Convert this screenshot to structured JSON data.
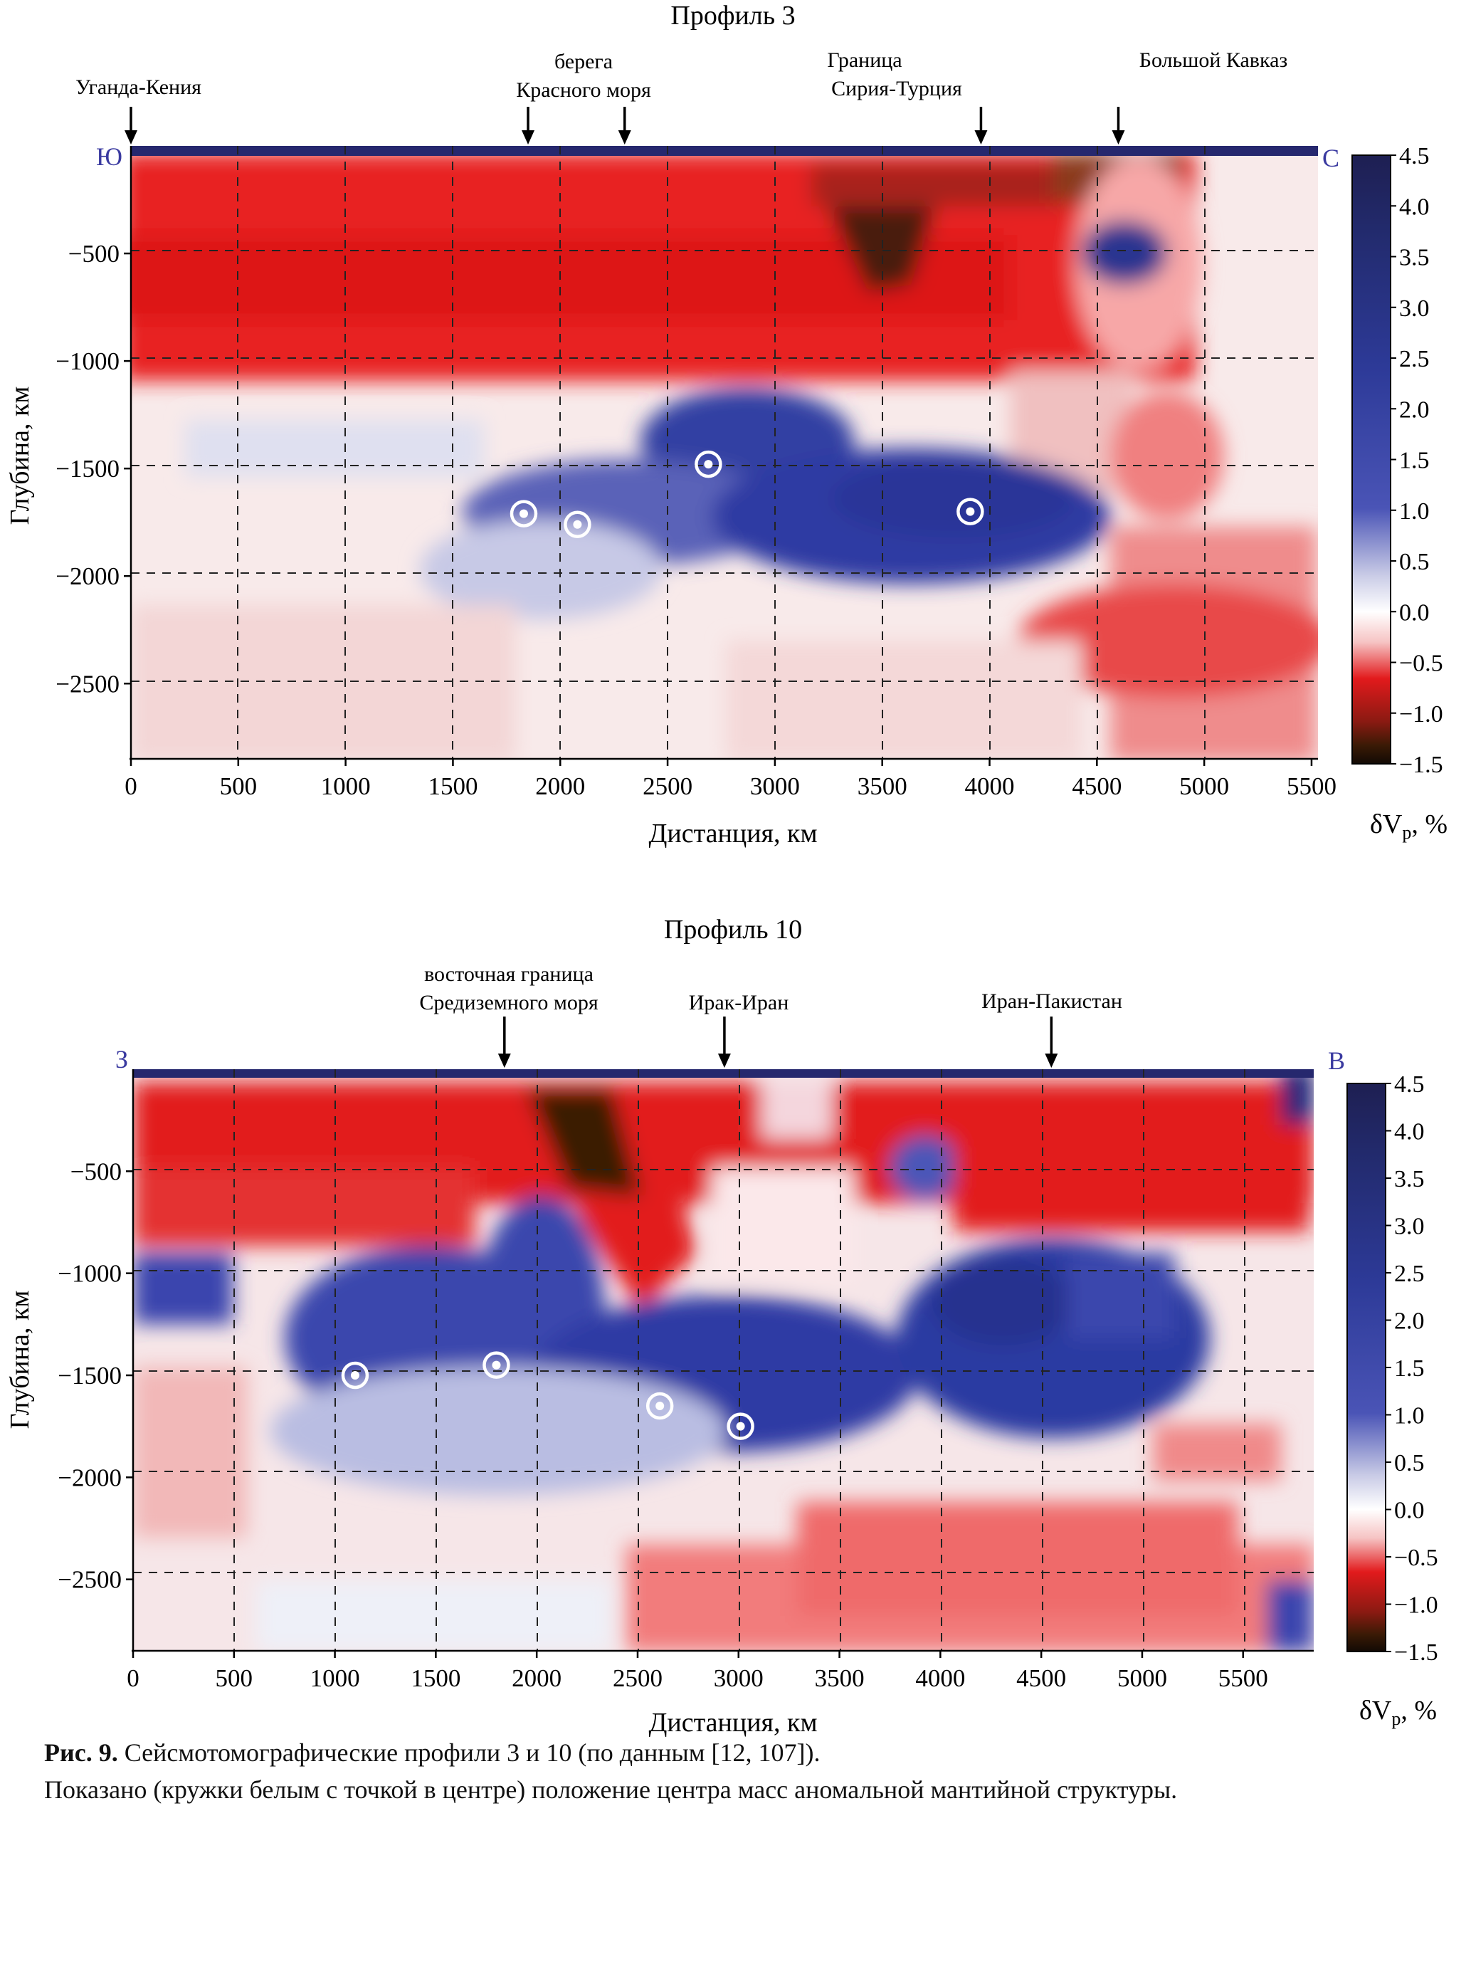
{
  "chart_data": [
    {
      "type": "heatmap",
      "title": "Профиль 3",
      "xlabel": "Дистанция, км",
      "ylabel": "Глубина, км",
      "xlim": [
        0,
        5530
      ],
      "ylim": [
        -2850,
        0
      ],
      "xticks": [
        0,
        500,
        1000,
        1500,
        2000,
        2500,
        3000,
        3500,
        4000,
        4500,
        5000,
        5500
      ],
      "yticks": [
        -500,
        -1000,
        -1500,
        -2000,
        -2500
      ],
      "grid": true,
      "end_labels": {
        "left": "Ю",
        "right": "С"
      },
      "annotations": [
        {
          "text": "Уганда-Кения",
          "x": 0,
          "arrows": [
            0
          ]
        },
        {
          "text": "берега\nКрасного моря",
          "x": 2100,
          "arrows": [
            1850,
            2300
          ]
        },
        {
          "text": "Граница\nСирия-Турция",
          "x": 3730,
          "arrows": [
            3960
          ]
        },
        {
          "text": "Большой Кавказ",
          "x": 5090,
          "arrows": [
            4600
          ]
        }
      ],
      "center_of_mass": [
        {
          "x": 1830,
          "y": -1710
        },
        {
          "x": 2080,
          "y": -1760
        },
        {
          "x": 2690,
          "y": -1480
        },
        {
          "x": 3910,
          "y": -1700
        }
      ],
      "colorbar": {
        "label": "δVp, %",
        "min": -1.5,
        "max": 4.5,
        "ticks": [
          "4.5",
          "4.0",
          "3.5",
          "3.0",
          "2.5",
          "2.0",
          "1.5",
          "1.0",
          "0.5",
          "0.0",
          "−0.5",
          "−1.0",
          "−1.5"
        ]
      }
    },
    {
      "type": "heatmap",
      "title": "Профиль 10",
      "xlabel": "Дистанция, км",
      "ylabel": "Глубина, км",
      "xlim": [
        0,
        5850
      ],
      "ylim": [
        -2850,
        0
      ],
      "xticks": [
        0,
        500,
        1000,
        1500,
        2000,
        2500,
        3000,
        3500,
        4000,
        4500,
        5000,
        5500
      ],
      "yticks": [
        -500,
        -1000,
        -1500,
        -2000,
        -2500
      ],
      "grid": true,
      "end_labels": {
        "left": "З",
        "right": "В"
      },
      "annotations": [
        {
          "text": "восточная граница\nСредиземного моря",
          "x": 1780,
          "arrows": [
            1840
          ]
        },
        {
          "text": "Ирак-Иран",
          "x": 2930,
          "arrows": [
            2930
          ]
        },
        {
          "text": "Иран-Пакистан",
          "x": 4550,
          "arrows": [
            4550
          ]
        }
      ],
      "center_of_mass": [
        {
          "x": 1100,
          "y": -1500
        },
        {
          "x": 1800,
          "y": -1450
        },
        {
          "x": 2610,
          "y": -1650
        },
        {
          "x": 3010,
          "y": -1750
        }
      ],
      "colorbar": {
        "label": "δVp, %",
        "min": -1.5,
        "max": 4.5,
        "ticks": [
          "4.5",
          "4.0",
          "3.5",
          "3.0",
          "2.5",
          "2.0",
          "1.5",
          "1.0",
          "0.5",
          "0.0",
          "−0.5",
          "−1.0",
          "−1.5"
        ]
      }
    }
  ],
  "caption": {
    "label": "Рис.  9.",
    "line1": " Сейсмотомографические профили 3 и 10 (по данным [12, 107]).",
    "line2": "Показано (кружки белым с точкой в центре) положение центра масс аномальной мантийной структуры."
  },
  "colors": {
    "accent_end_labels": "#3a3aa0",
    "strong_red": "#e21a1c",
    "dark_brown": "#3a1a05",
    "strong_blue": "#24287a",
    "mid_blue": "#3a44ae"
  }
}
